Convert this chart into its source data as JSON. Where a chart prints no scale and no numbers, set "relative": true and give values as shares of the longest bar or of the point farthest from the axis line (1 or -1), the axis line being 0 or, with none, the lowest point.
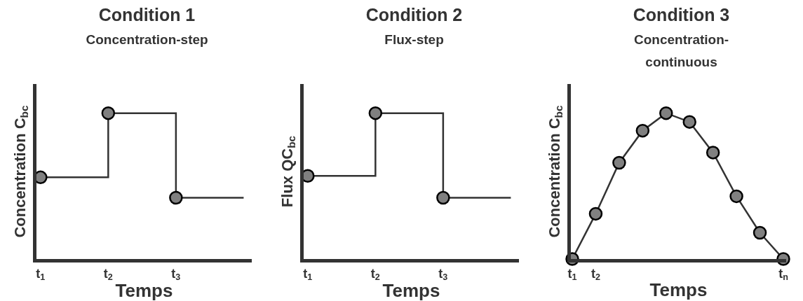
{
  "chart_data": [
    {
      "type": "step",
      "title": "Condition 1",
      "subtitle": "Concentration-step",
      "xlabel": "Temps",
      "ylabel": "Concentration C$_{bc}$",
      "relative": true,
      "categories": [
        "t$_{1}$",
        "t$_{2}$",
        "t$_{3}$",
        null
      ],
      "series": [
        {
          "color": "#333333",
          "marker": "none",
          "values": [
            0.56,
            1,
            0.42,
            0.42
          ]
        },
        {
          "type": "scatter",
          "color": "#808080",
          "marker": "circle",
          "values": [
            0.56,
            1,
            0.42,
            null
          ]
        }
      ]
    },
    {
      "type": "step",
      "title": "Condition 2",
      "subtitle": "Flux-step",
      "xlabel": "Temps",
      "ylabel": "Flux QC$_{bc}$",
      "relative": true,
      "categories": [
        "t$_{1}$",
        "t$_{2}$",
        "t$_{3}$",
        null
      ],
      "series": [
        {
          "color": "#333333",
          "marker": "none",
          "values": [
            0.57,
            1,
            0.42,
            0.42
          ]
        },
        {
          "type": "scatter",
          "color": "#808080",
          "marker": "circle",
          "values": [
            0.57,
            1,
            0.42,
            null
          ]
        }
      ]
    },
    {
      "type": "line",
      "title": "Condition 3",
      "subtitle": "Concentration-\ncontinuous",
      "xlabel": "Temps",
      "ylabel": "Concentration C$_{bc}$",
      "relative": true,
      "categories": [
        "t$_{1}$",
        "t$_{2}$",
        null,
        null,
        null,
        null,
        null,
        null,
        null,
        "t$_{n}$"
      ],
      "series": [
        {
          "color": "#333333",
          "marker": "none",
          "values": [
            0,
            0.31,
            0.66,
            0.88,
            1,
            0.94,
            0.73,
            0.43,
            0.18,
            0
          ]
        },
        {
          "type": "scatter",
          "color": "#808080",
          "marker": "circle",
          "values": [
            0,
            0.31,
            0.66,
            0.88,
            1,
            0.94,
            0.73,
            0.43,
            0.18,
            0
          ]
        }
      ]
    }
  ]
}
